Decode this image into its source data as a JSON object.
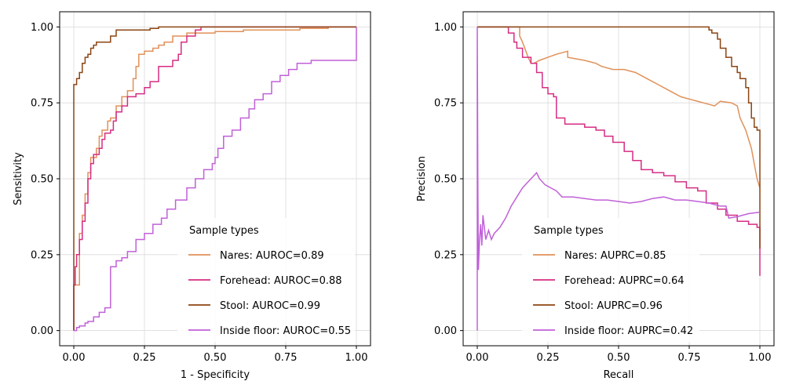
{
  "chart_data": [
    {
      "type": "line",
      "title": "",
      "xlabel": "1 - Specificity",
      "ylabel": "Sensitivity",
      "xlim": [
        -0.05,
        1.05
      ],
      "ylim": [
        -0.05,
        1.05
      ],
      "xticks": [
        {
          "value": 0.0,
          "label": "0.00"
        },
        {
          "value": 0.25,
          "label": "0.25"
        },
        {
          "value": 0.5,
          "label": "0.50"
        },
        {
          "value": 0.75,
          "label": "0.75"
        },
        {
          "value": 1.0,
          "label": "1.00"
        }
      ],
      "yticks": [
        {
          "value": 0.0,
          "label": "0.00"
        },
        {
          "value": 0.25,
          "label": "0.25"
        },
        {
          "value": 0.5,
          "label": "0.50"
        },
        {
          "value": 0.75,
          "label": "0.75"
        },
        {
          "value": 1.0,
          "label": "1.00"
        }
      ],
      "grid": true,
      "legend": {
        "title": "Sample types",
        "placement": "lower-right"
      },
      "series": [
        {
          "name": "Nares: AUROC=0.89",
          "color": "#e0915a",
          "step": true,
          "points": [
            [
              0,
              0
            ],
            [
              0,
              0.15
            ],
            [
              0.02,
              0.18
            ],
            [
              0.02,
              0.32
            ],
            [
              0.03,
              0.38
            ],
            [
              0.04,
              0.45
            ],
            [
              0.05,
              0.52
            ],
            [
              0.06,
              0.57
            ],
            [
              0.08,
              0.6
            ],
            [
              0.09,
              0.64
            ],
            [
              0.1,
              0.66
            ],
            [
              0.12,
              0.69
            ],
            [
              0.13,
              0.7
            ],
            [
              0.15,
              0.74
            ],
            [
              0.17,
              0.77
            ],
            [
              0.19,
              0.79
            ],
            [
              0.21,
              0.83
            ],
            [
              0.22,
              0.87
            ],
            [
              0.23,
              0.91
            ],
            [
              0.25,
              0.92
            ],
            [
              0.28,
              0.93
            ],
            [
              0.3,
              0.94
            ],
            [
              0.32,
              0.95
            ],
            [
              0.35,
              0.97
            ],
            [
              0.4,
              0.98
            ],
            [
              0.5,
              0.985
            ],
            [
              0.6,
              0.99
            ],
            [
              0.7,
              0.99
            ],
            [
              0.8,
              0.995
            ],
            [
              0.9,
              1.0
            ],
            [
              1.0,
              1.0
            ]
          ]
        },
        {
          "name": "Forehead: AUROC=0.88",
          "color": "#d62d83",
          "step": true,
          "points": [
            [
              0,
              0
            ],
            [
              0,
              0.15
            ],
            [
              0.005,
              0.21
            ],
            [
              0.01,
              0.25
            ],
            [
              0.02,
              0.3
            ],
            [
              0.03,
              0.36
            ],
            [
              0.04,
              0.42
            ],
            [
              0.05,
              0.5
            ],
            [
              0.06,
              0.55
            ],
            [
              0.07,
              0.58
            ],
            [
              0.09,
              0.6
            ],
            [
              0.1,
              0.63
            ],
            [
              0.11,
              0.65
            ],
            [
              0.13,
              0.66
            ],
            [
              0.14,
              0.69
            ],
            [
              0.15,
              0.72
            ],
            [
              0.17,
              0.74
            ],
            [
              0.19,
              0.77
            ],
            [
              0.22,
              0.78
            ],
            [
              0.25,
              0.8
            ],
            [
              0.27,
              0.82
            ],
            [
              0.3,
              0.87
            ],
            [
              0.35,
              0.89
            ],
            [
              0.37,
              0.91
            ],
            [
              0.38,
              0.95
            ],
            [
              0.4,
              0.97
            ],
            [
              0.43,
              0.99
            ],
            [
              0.45,
              1.0
            ],
            [
              1.0,
              1.0
            ]
          ]
        },
        {
          "name": "Stool: AUROC=0.99",
          "color": "#8b4513",
          "step": true,
          "points": [
            [
              0,
              0
            ],
            [
              0,
              0.81
            ],
            [
              0.01,
              0.83
            ],
            [
              0.02,
              0.85
            ],
            [
              0.03,
              0.88
            ],
            [
              0.04,
              0.9
            ],
            [
              0.05,
              0.91
            ],
            [
              0.06,
              0.93
            ],
            [
              0.07,
              0.94
            ],
            [
              0.08,
              0.95
            ],
            [
              0.13,
              0.97
            ],
            [
              0.15,
              0.99
            ],
            [
              0.2,
              0.99
            ],
            [
              0.27,
              0.995
            ],
            [
              0.3,
              1.0
            ],
            [
              1.0,
              1.0
            ]
          ]
        },
        {
          "name": "Inside floor: AUROC=0.55",
          "color": "#c061d8",
          "step": true,
          "points": [
            [
              0,
              0
            ],
            [
              0.01,
              0.01
            ],
            [
              0.02,
              0.015
            ],
            [
              0.04,
              0.025
            ],
            [
              0.05,
              0.03
            ],
            [
              0.07,
              0.045
            ],
            [
              0.09,
              0.06
            ],
            [
              0.11,
              0.075
            ],
            [
              0.13,
              0.1
            ],
            [
              0.13,
              0.21
            ],
            [
              0.15,
              0.23
            ],
            [
              0.17,
              0.24
            ],
            [
              0.19,
              0.26
            ],
            [
              0.22,
              0.3
            ],
            [
              0.25,
              0.32
            ],
            [
              0.28,
              0.35
            ],
            [
              0.31,
              0.37
            ],
            [
              0.33,
              0.4
            ],
            [
              0.36,
              0.43
            ],
            [
              0.4,
              0.47
            ],
            [
              0.43,
              0.5
            ],
            [
              0.46,
              0.53
            ],
            [
              0.49,
              0.55
            ],
            [
              0.5,
              0.57
            ],
            [
              0.51,
              0.6
            ],
            [
              0.53,
              0.64
            ],
            [
              0.56,
              0.66
            ],
            [
              0.59,
              0.7
            ],
            [
              0.62,
              0.73
            ],
            [
              0.64,
              0.76
            ],
            [
              0.67,
              0.78
            ],
            [
              0.7,
              0.82
            ],
            [
              0.73,
              0.84
            ],
            [
              0.76,
              0.86
            ],
            [
              0.79,
              0.88
            ],
            [
              0.84,
              0.89
            ],
            [
              0.9,
              0.89
            ],
            [
              1.0,
              0.89
            ],
            [
              1.0,
              1.0
            ]
          ]
        }
      ]
    },
    {
      "type": "line",
      "title": "",
      "xlabel": "Recall",
      "ylabel": "Precision",
      "xlim": [
        -0.05,
        1.05
      ],
      "ylim": [
        -0.05,
        1.05
      ],
      "xticks": [
        {
          "value": 0.0,
          "label": "0.00"
        },
        {
          "value": 0.25,
          "label": "0.25"
        },
        {
          "value": 0.5,
          "label": "0.50"
        },
        {
          "value": 0.75,
          "label": "0.75"
        },
        {
          "value": 1.0,
          "label": "1.00"
        }
      ],
      "yticks": [
        {
          "value": 0.0,
          "label": "0.00"
        },
        {
          "value": 0.25,
          "label": "0.25"
        },
        {
          "value": 0.5,
          "label": "0.50"
        },
        {
          "value": 0.75,
          "label": "0.75"
        },
        {
          "value": 1.0,
          "label": "1.00"
        }
      ],
      "grid": true,
      "legend": {
        "title": "Sample types",
        "placement": "lower-right"
      },
      "series": [
        {
          "name": "Nares: AUPRC=0.85",
          "color": "#e0915a",
          "step": false,
          "points": [
            [
              0,
              1.0
            ],
            [
              0.15,
              1.0
            ],
            [
              0.15,
              0.97
            ],
            [
              0.16,
              0.95
            ],
            [
              0.18,
              0.9
            ],
            [
              0.19,
              0.88
            ],
            [
              0.2,
              0.88
            ],
            [
              0.22,
              0.89
            ],
            [
              0.25,
              0.9
            ],
            [
              0.28,
              0.91
            ],
            [
              0.32,
              0.92
            ],
            [
              0.32,
              0.9
            ],
            [
              0.38,
              0.89
            ],
            [
              0.42,
              0.88
            ],
            [
              0.44,
              0.87
            ],
            [
              0.48,
              0.86
            ],
            [
              0.52,
              0.86
            ],
            [
              0.56,
              0.85
            ],
            [
              0.6,
              0.83
            ],
            [
              0.64,
              0.81
            ],
            [
              0.68,
              0.79
            ],
            [
              0.72,
              0.77
            ],
            [
              0.76,
              0.76
            ],
            [
              0.8,
              0.75
            ],
            [
              0.84,
              0.74
            ],
            [
              0.86,
              0.755
            ],
            [
              0.9,
              0.75
            ],
            [
              0.92,
              0.74
            ],
            [
              0.93,
              0.7
            ],
            [
              0.95,
              0.66
            ],
            [
              0.97,
              0.6
            ],
            [
              0.99,
              0.5
            ],
            [
              1.0,
              0.47
            ]
          ]
        },
        {
          "name": "Forehead: AUPRC=0.64",
          "color": "#d62d83",
          "step": true,
          "points": [
            [
              0,
              1.0
            ],
            [
              0.1,
              1.0
            ],
            [
              0.11,
              0.98
            ],
            [
              0.13,
              0.95
            ],
            [
              0.14,
              0.93
            ],
            [
              0.16,
              0.9
            ],
            [
              0.19,
              0.88
            ],
            [
              0.21,
              0.85
            ],
            [
              0.23,
              0.8
            ],
            [
              0.25,
              0.78
            ],
            [
              0.27,
              0.77
            ],
            [
              0.28,
              0.7
            ],
            [
              0.31,
              0.68
            ],
            [
              0.34,
              0.68
            ],
            [
              0.38,
              0.67
            ],
            [
              0.42,
              0.66
            ],
            [
              0.45,
              0.64
            ],
            [
              0.48,
              0.62
            ],
            [
              0.52,
              0.59
            ],
            [
              0.55,
              0.56
            ],
            [
              0.58,
              0.53
            ],
            [
              0.62,
              0.52
            ],
            [
              0.66,
              0.51
            ],
            [
              0.7,
              0.49
            ],
            [
              0.74,
              0.47
            ],
            [
              0.78,
              0.46
            ],
            [
              0.81,
              0.42
            ],
            [
              0.85,
              0.4
            ],
            [
              0.88,
              0.38
            ],
            [
              0.92,
              0.36
            ],
            [
              0.96,
              0.35
            ],
            [
              0.99,
              0.34
            ],
            [
              1.0,
              0.33
            ],
            [
              1.0,
              0.18
            ]
          ]
        },
        {
          "name": "Stool: AUPRC=0.96",
          "color": "#8b4513",
          "step": true,
          "points": [
            [
              0,
              1.0
            ],
            [
              0.8,
              1.0
            ],
            [
              0.82,
              0.99
            ],
            [
              0.83,
              0.98
            ],
            [
              0.85,
              0.96
            ],
            [
              0.86,
              0.93
            ],
            [
              0.88,
              0.9
            ],
            [
              0.9,
              0.87
            ],
            [
              0.92,
              0.85
            ],
            [
              0.93,
              0.83
            ],
            [
              0.95,
              0.8
            ],
            [
              0.96,
              0.75
            ],
            [
              0.97,
              0.7
            ],
            [
              0.98,
              0.67
            ],
            [
              0.99,
              0.66
            ],
            [
              1.0,
              0.5
            ],
            [
              1.0,
              0.27
            ]
          ]
        },
        {
          "name": "Inside floor: AUPRC=0.42",
          "color": "#c061d8",
          "step": false,
          "points": [
            [
              0,
              0.0
            ],
            [
              0,
              1.0
            ],
            [
              0.002,
              0.5
            ],
            [
              0.004,
              0.2
            ],
            [
              0.008,
              0.3
            ],
            [
              0.012,
              0.35
            ],
            [
              0.016,
              0.28
            ],
            [
              0.02,
              0.38
            ],
            [
              0.03,
              0.3
            ],
            [
              0.04,
              0.33
            ],
            [
              0.05,
              0.3
            ],
            [
              0.06,
              0.32
            ],
            [
              0.08,
              0.34
            ],
            [
              0.1,
              0.37
            ],
            [
              0.12,
              0.41
            ],
            [
              0.14,
              0.44
            ],
            [
              0.16,
              0.47
            ],
            [
              0.18,
              0.49
            ],
            [
              0.2,
              0.51
            ],
            [
              0.21,
              0.52
            ],
            [
              0.22,
              0.5
            ],
            [
              0.24,
              0.48
            ],
            [
              0.26,
              0.47
            ],
            [
              0.28,
              0.46
            ],
            [
              0.3,
              0.44
            ],
            [
              0.34,
              0.44
            ],
            [
              0.38,
              0.435
            ],
            [
              0.42,
              0.43
            ],
            [
              0.46,
              0.43
            ],
            [
              0.5,
              0.425
            ],
            [
              0.54,
              0.42
            ],
            [
              0.58,
              0.425
            ],
            [
              0.62,
              0.435
            ],
            [
              0.66,
              0.44
            ],
            [
              0.7,
              0.43
            ],
            [
              0.74,
              0.43
            ],
            [
              0.78,
              0.425
            ],
            [
              0.82,
              0.42
            ],
            [
              0.86,
              0.41
            ],
            [
              0.88,
              0.41
            ],
            [
              0.89,
              0.37
            ],
            [
              0.92,
              0.375
            ],
            [
              0.96,
              0.385
            ],
            [
              1.0,
              0.39
            ]
          ]
        }
      ]
    }
  ]
}
